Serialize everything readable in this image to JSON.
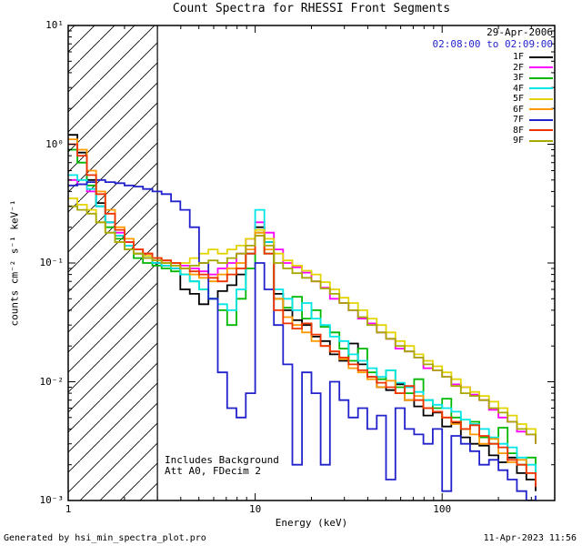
{
  "header": {
    "date": "29-Apr-2006",
    "time_range": "02:08:00 to 02:09:00",
    "time_color": "#2323cd"
  },
  "annotations": {
    "background": "Includes Background",
    "attenuator": "Att A0, FDecim 2"
  },
  "footer": {
    "left": "Generated by hsi_min_spectra_plot.pro",
    "right": "11-Apr-2023 11:56"
  },
  "chart_data": {
    "type": "line",
    "title": "Count Spectra for RHESSI Front Segments",
    "xlabel": "Energy (keV)",
    "ylabel": "counts cm⁻² s⁻¹ keV⁻¹",
    "x_scale": "log",
    "y_scale": "log",
    "xlim": [
      1,
      400
    ],
    "ylim": [
      0.001,
      10
    ],
    "grid": false,
    "legend_position": "inside-top-right",
    "line_style": "histogram-steps",
    "frame_color": "#000000",
    "x_ticks": [
      {
        "value": 1,
        "label": "1"
      },
      {
        "value": 10,
        "label": "10"
      },
      {
        "value": 100,
        "label": "100"
      }
    ],
    "y_ticks": [
      {
        "value": 10,
        "label": "10¹"
      },
      {
        "value": 1,
        "label": "10⁰"
      },
      {
        "value": 0.1,
        "label": "10⁻¹"
      },
      {
        "value": 0.01,
        "label": "10⁻²"
      },
      {
        "value": 0.001,
        "label": "10⁻³"
      }
    ],
    "hatch_region": {
      "x_start": 1,
      "x_end": 3,
      "style": "diagonal-lines"
    },
    "x": [
      1.0,
      1.12,
      1.26,
      1.41,
      1.58,
      1.78,
      2.0,
      2.24,
      2.51,
      2.82,
      3.16,
      3.55,
      3.98,
      4.47,
      5.01,
      5.62,
      6.31,
      7.08,
      7.94,
      8.91,
      10.0,
      11.2,
      12.6,
      14.1,
      15.8,
      17.8,
      20.0,
      22.4,
      25.1,
      28.2,
      31.6,
      35.5,
      39.8,
      44.7,
      50.1,
      56.2,
      63.1,
      70.8,
      79.4,
      89.1,
      100,
      112,
      126,
      141,
      158,
      178,
      200,
      224,
      251,
      282,
      316
    ],
    "series": [
      {
        "name": "1F",
        "color": "#000000",
        "values": [
          1.2,
          0.85,
          0.5,
          0.32,
          0.22,
          0.17,
          0.14,
          0.12,
          0.11,
          0.1,
          0.095,
          0.09,
          0.06,
          0.055,
          0.045,
          0.05,
          0.058,
          0.065,
          0.08,
          0.12,
          0.2,
          0.15,
          0.055,
          0.04,
          0.033,
          0.03,
          0.024,
          0.022,
          0.017,
          0.015,
          0.021,
          0.014,
          0.011,
          0.009,
          0.0085,
          0.0095,
          0.007,
          0.0062,
          0.0052,
          0.0055,
          0.0042,
          0.0045,
          0.0034,
          0.003,
          0.0029,
          0.0024,
          0.0021,
          0.0023,
          0.0017,
          0.0015,
          0.0012
        ]
      },
      {
        "name": "2F",
        "color": "#ff00ff",
        "values": [
          0.5,
          0.46,
          0.4,
          0.3,
          0.22,
          0.18,
          0.15,
          0.13,
          0.12,
          0.11,
          0.105,
          0.1,
          0.095,
          0.09,
          0.085,
          0.08,
          0.09,
          0.1,
          0.12,
          0.16,
          0.22,
          0.18,
          0.13,
          0.1,
          0.092,
          0.083,
          0.07,
          0.062,
          0.05,
          0.046,
          0.04,
          0.034,
          0.031,
          0.026,
          0.023,
          0.019,
          0.018,
          0.016,
          0.013,
          0.0125,
          0.011,
          0.0095,
          0.009,
          0.0078,
          0.007,
          0.0058,
          0.005,
          0.0046,
          0.0038,
          0.0036,
          0.003
        ]
      },
      {
        "name": "3F",
        "color": "#00b800",
        "values": [
          0.9,
          0.7,
          0.45,
          0.3,
          0.2,
          0.16,
          0.13,
          0.11,
          0.1,
          0.095,
          0.09,
          0.085,
          0.08,
          0.07,
          0.06,
          0.05,
          0.04,
          0.03,
          0.05,
          0.09,
          0.18,
          0.12,
          0.05,
          0.042,
          0.052,
          0.034,
          0.04,
          0.029,
          0.026,
          0.019,
          0.015,
          0.019,
          0.012,
          0.0105,
          0.0125,
          0.009,
          0.008,
          0.0105,
          0.007,
          0.006,
          0.0072,
          0.005,
          0.004,
          0.0046,
          0.0034,
          0.003,
          0.0041,
          0.0025,
          0.002,
          0.0023,
          0.0017
        ]
      },
      {
        "name": "4F",
        "color": "#00e5e5",
        "values": [
          0.55,
          0.5,
          0.42,
          0.3,
          0.22,
          0.17,
          0.14,
          0.12,
          0.11,
          0.1,
          0.095,
          0.09,
          0.08,
          0.07,
          0.06,
          0.05,
          0.045,
          0.04,
          0.06,
          0.12,
          0.28,
          0.15,
          0.06,
          0.05,
          0.04,
          0.046,
          0.034,
          0.03,
          0.024,
          0.022,
          0.017,
          0.015,
          0.013,
          0.011,
          0.0125,
          0.0098,
          0.009,
          0.0082,
          0.007,
          0.0064,
          0.006,
          0.0056,
          0.0048,
          0.0044,
          0.004,
          0.0034,
          0.003,
          0.0028,
          0.0023,
          0.002,
          0.0016
        ]
      },
      {
        "name": "5F",
        "color": "#e3d400",
        "values": [
          0.35,
          0.31,
          0.28,
          0.22,
          0.18,
          0.15,
          0.13,
          0.12,
          0.115,
          0.11,
          0.105,
          0.1,
          0.1,
          0.11,
          0.12,
          0.13,
          0.12,
          0.13,
          0.14,
          0.16,
          0.19,
          0.16,
          0.12,
          0.105,
          0.095,
          0.086,
          0.08,
          0.069,
          0.06,
          0.051,
          0.046,
          0.04,
          0.034,
          0.03,
          0.026,
          0.022,
          0.02,
          0.017,
          0.015,
          0.0135,
          0.012,
          0.0105,
          0.009,
          0.0082,
          0.0076,
          0.0068,
          0.006,
          0.0052,
          0.0044,
          0.004,
          0.0034
        ]
      },
      {
        "name": "6F",
        "color": "#ff9900",
        "values": [
          1.1,
          0.9,
          0.6,
          0.4,
          0.28,
          0.2,
          0.16,
          0.13,
          0.12,
          0.11,
          0.1,
          0.095,
          0.09,
          0.08,
          0.075,
          0.07,
          0.08,
          0.09,
          0.1,
          0.13,
          0.18,
          0.13,
          0.05,
          0.035,
          0.03,
          0.026,
          0.022,
          0.02,
          0.018,
          0.0155,
          0.013,
          0.012,
          0.0105,
          0.009,
          0.0102,
          0.008,
          0.007,
          0.0076,
          0.006,
          0.0056,
          0.005,
          0.0044,
          0.004,
          0.0036,
          0.003,
          0.0033,
          0.0025,
          0.0021,
          0.0022,
          0.0017,
          0.0014
        ]
      },
      {
        "name": "7F",
        "color": "#2222cc",
        "values": [
          0.45,
          0.46,
          0.48,
          0.5,
          0.48,
          0.47,
          0.45,
          0.44,
          0.42,
          0.4,
          0.38,
          0.33,
          0.28,
          0.2,
          0.1,
          0.05,
          0.012,
          0.006,
          0.005,
          0.008,
          0.1,
          0.06,
          0.03,
          0.014,
          0.002,
          0.012,
          0.008,
          0.002,
          0.01,
          0.007,
          0.005,
          0.006,
          0.004,
          0.0052,
          0.0015,
          0.006,
          0.004,
          0.0036,
          0.003,
          0.004,
          0.0012,
          0.0035,
          0.003,
          0.0026,
          0.002,
          0.0022,
          0.0018,
          0.0015,
          0.0012,
          0.001,
          0.0011
        ]
      },
      {
        "name": "8F",
        "color": "#ee3300",
        "values": [
          1.0,
          0.8,
          0.55,
          0.38,
          0.26,
          0.19,
          0.15,
          0.13,
          0.12,
          0.11,
          0.105,
          0.1,
          0.09,
          0.085,
          0.08,
          0.075,
          0.07,
          0.08,
          0.09,
          0.12,
          0.17,
          0.12,
          0.04,
          0.031,
          0.028,
          0.031,
          0.025,
          0.02,
          0.018,
          0.016,
          0.014,
          0.0125,
          0.011,
          0.0098,
          0.009,
          0.008,
          0.0092,
          0.007,
          0.006,
          0.0056,
          0.005,
          0.0046,
          0.004,
          0.0043,
          0.0035,
          0.003,
          0.0028,
          0.0022,
          0.002,
          0.0017,
          0.0013
        ]
      },
      {
        "name": "9F",
        "color": "#a8a800",
        "values": [
          0.3,
          0.28,
          0.26,
          0.22,
          0.18,
          0.15,
          0.13,
          0.12,
          0.11,
          0.105,
          0.1,
          0.095,
          0.09,
          0.095,
          0.1,
          0.105,
          0.1,
          0.11,
          0.12,
          0.14,
          0.17,
          0.14,
          0.1,
          0.09,
          0.082,
          0.075,
          0.07,
          0.061,
          0.055,
          0.046,
          0.04,
          0.035,
          0.03,
          0.026,
          0.023,
          0.02,
          0.018,
          0.016,
          0.014,
          0.0125,
          0.011,
          0.0092,
          0.008,
          0.0076,
          0.007,
          0.006,
          0.0055,
          0.0046,
          0.004,
          0.0036,
          0.003
        ]
      }
    ]
  }
}
